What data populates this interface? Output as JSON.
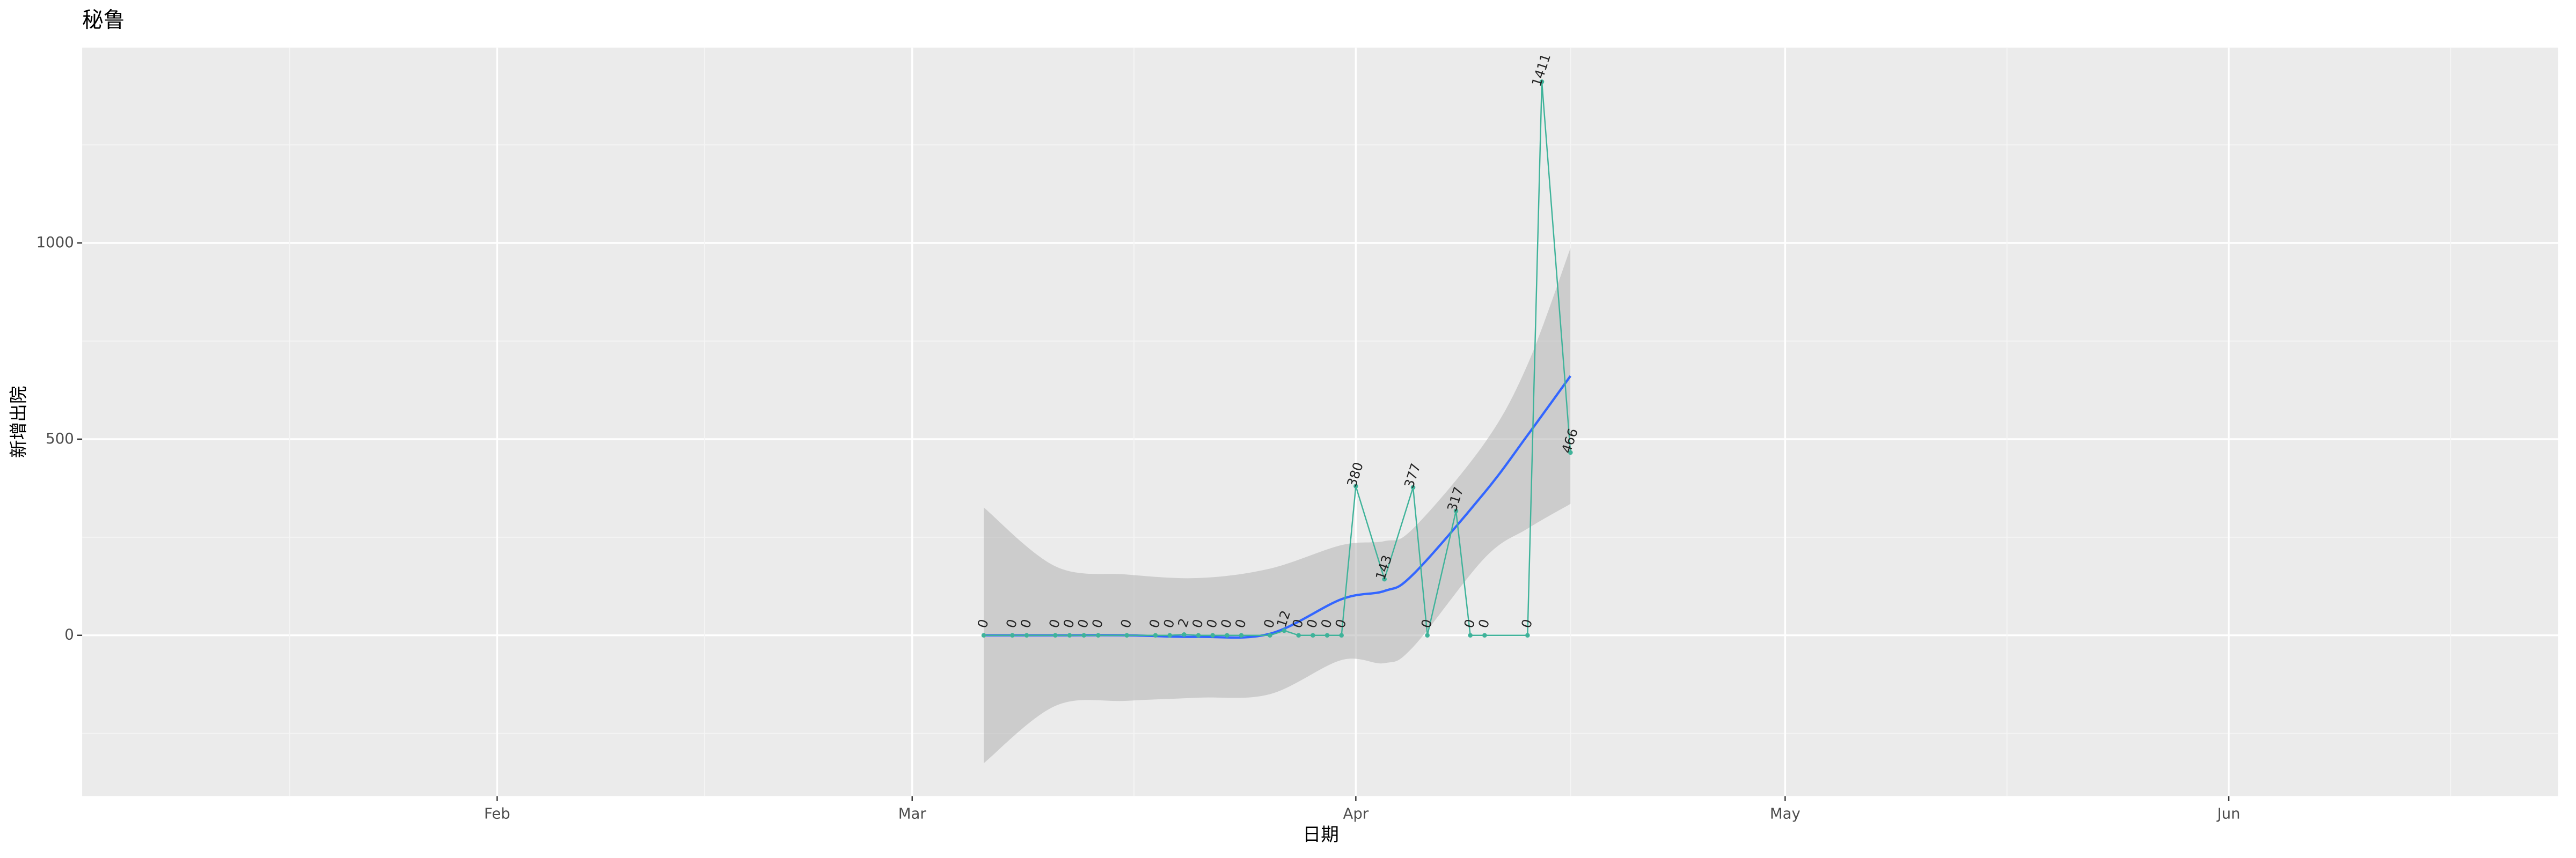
{
  "chart_data": {
    "type": "line",
    "title": "秘鲁",
    "x_label": "日期",
    "y_label": "新增出院",
    "x": [
      "03-06",
      "03-08",
      "03-09",
      "03-11",
      "03-12",
      "03-13",
      "03-14",
      "03-16",
      "03-18",
      "03-19",
      "03-20",
      "03-21",
      "03-22",
      "03-23",
      "03-24",
      "03-26",
      "03-27",
      "03-28",
      "03-29",
      "03-30",
      "03-31",
      "04-01",
      "04-03",
      "04-05",
      "04-06",
      "04-08",
      "04-09",
      "04-10",
      "04-13",
      "04-14",
      "04-16"
    ],
    "series": [
      {
        "color": "#3fb39a",
        "values": [
          0,
          0,
          0,
          0,
          0,
          0,
          0,
          0,
          0,
          0,
          2,
          0,
          0,
          0,
          0,
          0,
          12,
          0,
          0,
          0,
          0,
          380,
          143,
          377,
          0,
          317,
          0,
          0,
          0,
          1411,
          466
        ]
      }
    ],
    "smooth": {
      "color": "#3366ff",
      "band_color": "#b3b3b3",
      "x": [
        "03-06",
        "03-11",
        "03-16",
        "03-21",
        "03-26",
        "03-31",
        "04-03",
        "04-05",
        "04-10",
        "04-13",
        "04-16"
      ],
      "values": [
        0,
        0,
        0,
        -4,
        4,
        92,
        113,
        155,
        364,
        510,
        661
      ],
      "lower": [
        -326,
        -180,
        -167,
        -159,
        -150,
        -63,
        -71,
        -30,
        197,
        272,
        335
      ],
      "upper": [
        326,
        176,
        155,
        146,
        170,
        230,
        240,
        272,
        490,
        690,
        987
      ]
    },
    "xlim": [
      "01-03",
      "06-24"
    ],
    "xticks": [
      {
        "value": "02-01",
        "label": "Feb"
      },
      {
        "value": "03-01",
        "label": "Mar"
      },
      {
        "value": "04-01",
        "label": "Apr"
      },
      {
        "value": "05-01",
        "label": "May"
      },
      {
        "value": "06-01",
        "label": "Jun"
      }
    ],
    "ylim": [
      -410,
      1498
    ],
    "yticks": [
      0,
      500,
      1000
    ],
    "grid": true
  }
}
